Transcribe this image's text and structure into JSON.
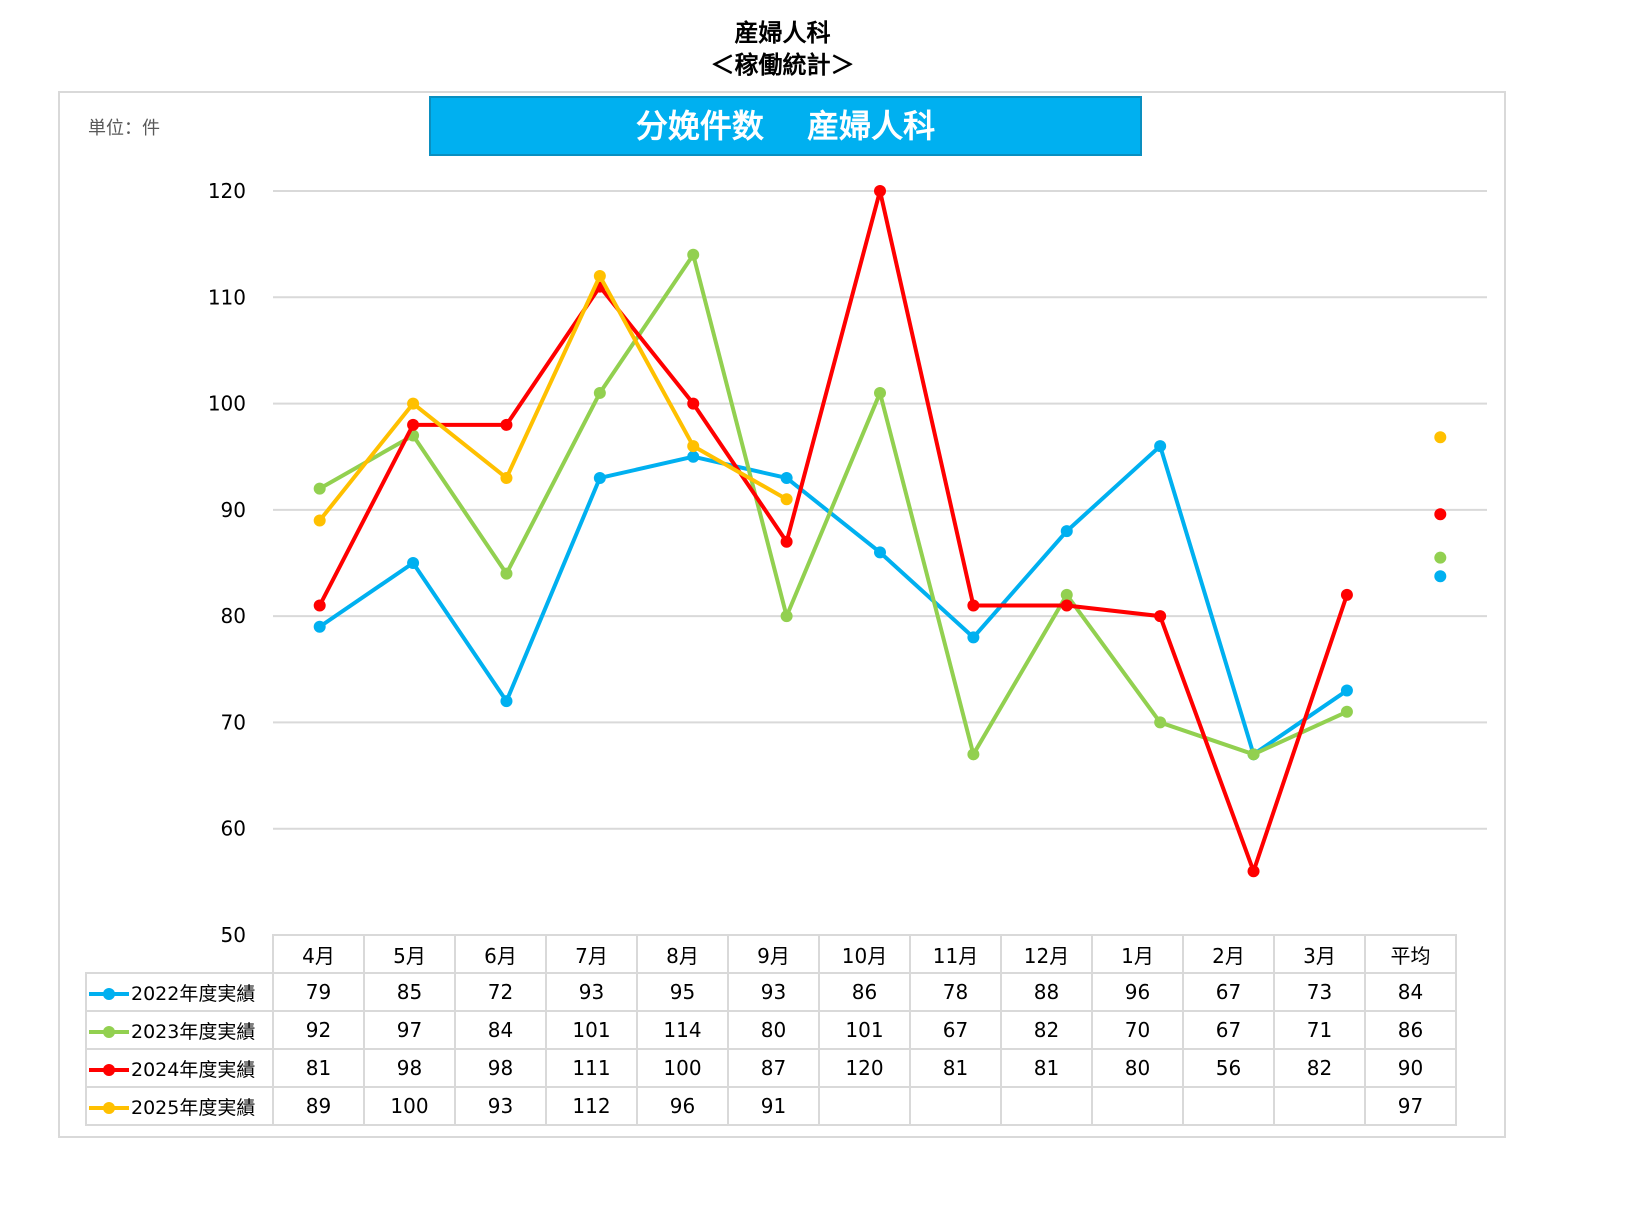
{
  "title_line1": "産婦人科",
  "title_line2": "＜稼働統計＞",
  "unit_label": "単位：件",
  "chart_data": {
    "type": "line",
    "title": "分娩件数　 産婦人科",
    "categories": [
      "4月",
      "5月",
      "6月",
      "7月",
      "8月",
      "9月",
      "10月",
      "11月",
      "12月",
      "1月",
      "2月",
      "3月"
    ],
    "average_label": "平均",
    "ylim": [
      50,
      120
    ],
    "yticks": [
      50,
      60,
      70,
      80,
      90,
      100,
      110,
      120
    ],
    "grid": true,
    "legend": "data-table-bottom",
    "series": [
      {
        "name": "2022年度実績",
        "color": "#00b0f0",
        "values": [
          79,
          85,
          72,
          93,
          95,
          93,
          86,
          78,
          88,
          96,
          67,
          73
        ],
        "average": "84"
      },
      {
        "name": "2023年度実績",
        "color": "#92d050",
        "values": [
          92,
          97,
          84,
          101,
          114,
          80,
          101,
          67,
          82,
          70,
          67,
          71
        ],
        "average": "86"
      },
      {
        "name": "2024年度実績",
        "color": "#ff0000",
        "values": [
          81,
          98,
          98,
          111,
          100,
          87,
          120,
          81,
          81,
          80,
          56,
          82
        ],
        "average": "90"
      },
      {
        "name": "2025年度実績",
        "color": "#ffc000",
        "values": [
          89,
          100,
          93,
          112,
          96,
          91,
          null,
          null,
          null,
          null,
          null,
          null
        ],
        "average": "97"
      }
    ]
  }
}
